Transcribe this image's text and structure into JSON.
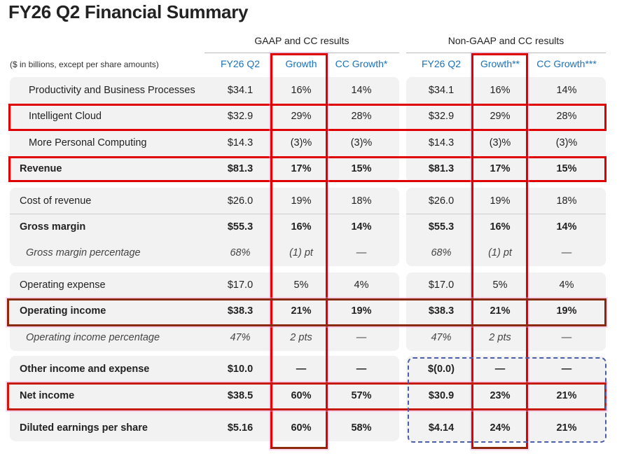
{
  "title": "FY26 Q2 Financial Summary",
  "group_headers": {
    "gaap": "GAAP and CC results",
    "non_gaap": "Non-GAAP and CC results"
  },
  "units_note": "($ in billions, except per share amounts)",
  "columns": [
    "FY26 Q2",
    "Growth",
    "CC Growth*",
    "FY26 Q2",
    "Growth**",
    "CC Growth***"
  ],
  "rows": [
    {
      "label": "Productivity and Business Processes",
      "values": [
        "$34.1",
        "16%",
        "14%",
        "$34.1",
        "16%",
        "14%"
      ]
    },
    {
      "label": "Intelligent Cloud",
      "values": [
        "$32.9",
        "29%",
        "28%",
        "$32.9",
        "29%",
        "28%"
      ]
    },
    {
      "label": "More Personal Computing",
      "values": [
        "$14.3",
        "(3)%",
        "(3)%",
        "$14.3",
        "(3)%",
        "(3)%"
      ]
    },
    {
      "label": "Revenue",
      "values": [
        "$81.3",
        "17%",
        "15%",
        "$81.3",
        "17%",
        "15%"
      ]
    },
    {
      "label": "Cost of revenue",
      "values": [
        "$26.0",
        "19%",
        "18%",
        "$26.0",
        "19%",
        "18%"
      ]
    },
    {
      "label": "Gross margin",
      "values": [
        "$55.3",
        "16%",
        "14%",
        "$55.3",
        "16%",
        "14%"
      ]
    },
    {
      "label": "Gross margin percentage",
      "values": [
        "68%",
        "(1) pt",
        "—",
        "68%",
        "(1) pt",
        "—"
      ]
    },
    {
      "label": "Operating expense",
      "values": [
        "$17.0",
        "5%",
        "4%",
        "$17.0",
        "5%",
        "4%"
      ]
    },
    {
      "label": "Operating income",
      "values": [
        "$38.3",
        "21%",
        "19%",
        "$38.3",
        "21%",
        "19%"
      ]
    },
    {
      "label": "Operating income percentage",
      "values": [
        "47%",
        "2 pts",
        "—",
        "47%",
        "2 pts",
        "—"
      ]
    },
    {
      "label": "Other income and expense",
      "values": [
        "$10.0",
        "—",
        "—",
        "$(0.0)",
        "—",
        "—"
      ]
    },
    {
      "label": "Net income",
      "values": [
        "$38.5",
        "60%",
        "57%",
        "$30.9",
        "23%",
        "21%"
      ]
    },
    {
      "label": "Diluted earnings per share",
      "values": [
        "$5.16",
        "60%",
        "58%",
        "$4.14",
        "24%",
        "21%"
      ]
    }
  ],
  "colors": {
    "header_blue": "#1a73b8",
    "highlight_red": "#e00000",
    "highlight_brown": "#8b2a0a",
    "dashed_blue": "#4a5fa8",
    "panel_gray": "#f2f2f2"
  }
}
